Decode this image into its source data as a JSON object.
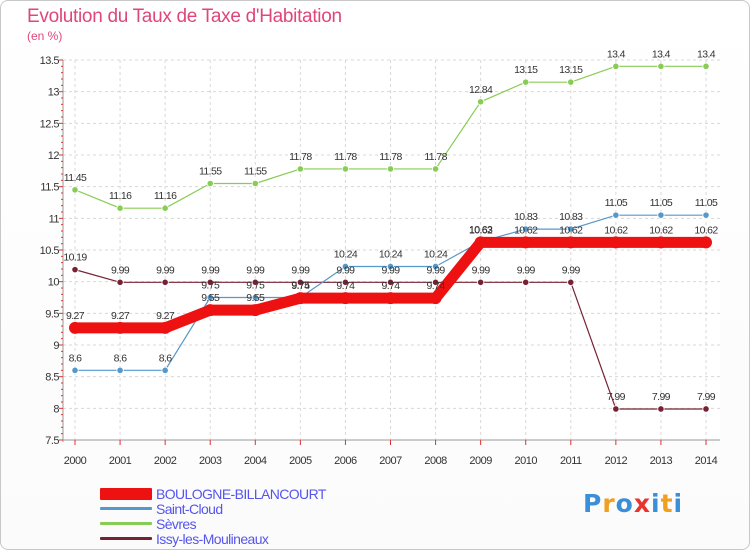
{
  "header": {
    "title": "Evolution du Taux de Taxe d'Habitation",
    "unit": "(en %)"
  },
  "chart_data": {
    "type": "line",
    "title": "Evolution du Taux de Taxe d'Habitation",
    "ylabel": "(en %)",
    "xlabel": "",
    "ylim": [
      7.5,
      13.5
    ],
    "yticks": [
      7.5,
      8,
      8.5,
      9,
      9.5,
      10,
      10.5,
      11,
      11.5,
      12,
      12.5,
      13,
      13.5
    ],
    "ytick_labels": [
      "7.5",
      "8",
      "8.5",
      "9",
      "9.5",
      "10",
      "10.5",
      "11",
      "11.5",
      "12",
      "12.5",
      "13",
      "13.5"
    ],
    "categories": [
      "2000",
      "2001",
      "2002",
      "2003",
      "2004",
      "2005",
      "2006",
      "2007",
      "2008",
      "2009",
      "2010",
      "2011",
      "2012",
      "2013",
      "2014"
    ],
    "grid": true,
    "legend_position": "bottom-left",
    "series": [
      {
        "name": "BOULOGNE-BILLANCOURT",
        "color": "#ee1111",
        "values": [
          9.27,
          9.27,
          9.27,
          9.55,
          9.55,
          9.74,
          9.74,
          9.74,
          9.74,
          10.62,
          10.62,
          10.62,
          10.62,
          10.62,
          10.62
        ],
        "labels": [
          "9.27",
          "9.27",
          "9.27",
          "9.55",
          "9.55",
          "9.74",
          "9.74",
          "9.74",
          "9.74",
          "10.62",
          "10.62",
          "10.62",
          "10.62",
          "10.62",
          "10.62"
        ]
      },
      {
        "name": "Saint-Cloud",
        "color": "#5598cc",
        "values": [
          8.6,
          8.6,
          8.6,
          9.75,
          9.75,
          9.75,
          10.24,
          10.24,
          10.24,
          10.63,
          10.83,
          10.83,
          11.05,
          11.05,
          11.05
        ],
        "labels": [
          "8.6",
          "8.6",
          "8.6",
          "9.75",
          "9.75",
          "9.75",
          "10.24",
          "10.24",
          "10.24",
          "10.63",
          "10.83",
          "10.83",
          "11.05",
          "11.05",
          "11.05"
        ]
      },
      {
        "name": "Sèvres",
        "color": "#88cc55",
        "values": [
          11.45,
          11.16,
          11.16,
          11.55,
          11.55,
          11.78,
          11.78,
          11.78,
          11.78,
          12.84,
          13.15,
          13.15,
          13.4,
          13.4,
          13.4
        ],
        "labels": [
          "11.45",
          "11.16",
          "11.16",
          "11.55",
          "11.55",
          "11.78",
          "11.78",
          "11.78",
          "11.78",
          "12.84",
          "13.15",
          "13.15",
          "13.4",
          "13.4",
          "13.4"
        ]
      },
      {
        "name": "Issy-les-Moulineaux",
        "color": "#772233",
        "values": [
          10.19,
          9.99,
          9.99,
          9.99,
          9.99,
          9.99,
          9.99,
          9.99,
          9.99,
          9.99,
          9.99,
          9.99,
          7.99,
          7.99,
          7.99
        ],
        "labels": [
          "10.19",
          "9.99",
          "9.99",
          "9.99",
          "9.99",
          "9.99",
          "9.99",
          "9.99",
          "9.99",
          "9.99",
          "9.99",
          "9.99",
          "7.99",
          "7.99",
          "7.99"
        ]
      }
    ]
  },
  "legend": {
    "items": [
      {
        "label": "BOULOGNE-BILLANCOURT",
        "color": "#ee1111",
        "text_color": "#5555ee"
      },
      {
        "label": "Saint-Cloud",
        "color": "#5598cc",
        "text_color": "#5555ee"
      },
      {
        "label": "Sèvres",
        "color": "#88cc55",
        "text_color": "#5555ee"
      },
      {
        "label": "Issy-les-Moulineaux",
        "color": "#772233",
        "text_color": "#5555ee"
      }
    ]
  },
  "logo": {
    "letters": [
      "P",
      "r",
      "o",
      "x",
      "i",
      "t",
      "i"
    ],
    "colors": [
      "#3a8fd9",
      "#f0a020",
      "#3a8fd9",
      "#e8332e",
      "#3a8fd9",
      "#f0a020",
      "#3a8fd9"
    ]
  }
}
